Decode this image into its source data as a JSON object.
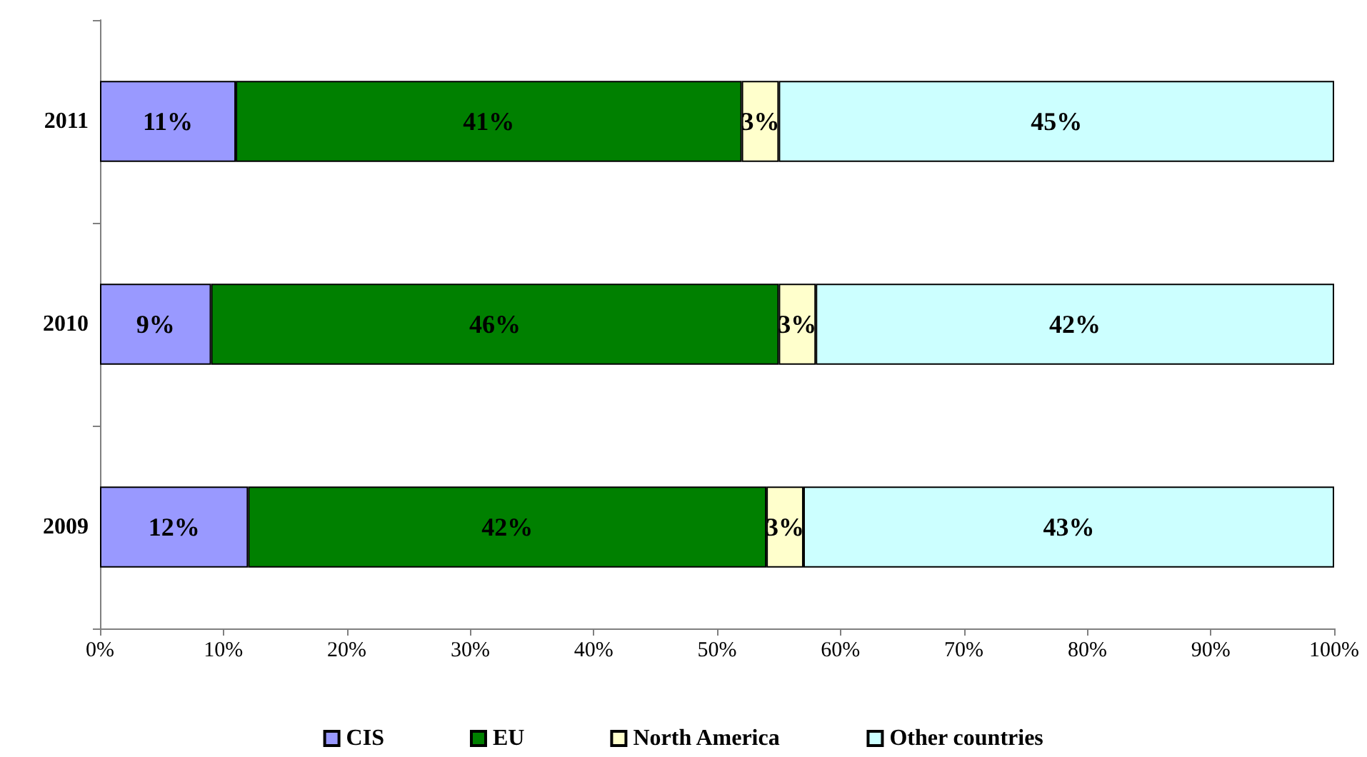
{
  "chart_data": {
    "type": "bar",
    "orientation": "horizontal",
    "stacked": true,
    "categories": [
      "2011",
      "2010",
      "2009"
    ],
    "series": [
      {
        "name": "CIS",
        "color": "#9999ff",
        "values": [
          11,
          9,
          12
        ],
        "value_labels": [
          "11%",
          "9%",
          "12%"
        ]
      },
      {
        "name": "EU",
        "color": "#008000",
        "values": [
          41,
          46,
          42
        ],
        "value_labels": [
          "41%",
          "46%",
          "42%"
        ]
      },
      {
        "name": "North America",
        "color": "#ffffcc",
        "values": [
          3,
          3,
          3
        ],
        "value_labels": [
          "3%",
          "3%",
          "3%"
        ]
      },
      {
        "name": "Other countries",
        "color": "#ccffff",
        "values": [
          45,
          42,
          43
        ],
        "value_labels": [
          "45%",
          "42%",
          "43%"
        ]
      }
    ],
    "xlim": [
      0,
      100
    ],
    "xticks": [
      {
        "value": 0,
        "label": "0%"
      },
      {
        "value": 10,
        "label": "10%"
      },
      {
        "value": 20,
        "label": "20%"
      },
      {
        "value": 30,
        "label": "30%"
      },
      {
        "value": 40,
        "label": "40%"
      },
      {
        "value": 50,
        "label": "50%"
      },
      {
        "value": 60,
        "label": "60%"
      },
      {
        "value": 70,
        "label": "70%"
      },
      {
        "value": 80,
        "label": "80%"
      },
      {
        "value": 90,
        "label": "90%"
      },
      {
        "value": 100,
        "label": "100%"
      }
    ],
    "grid": false,
    "legend": "bottom"
  }
}
